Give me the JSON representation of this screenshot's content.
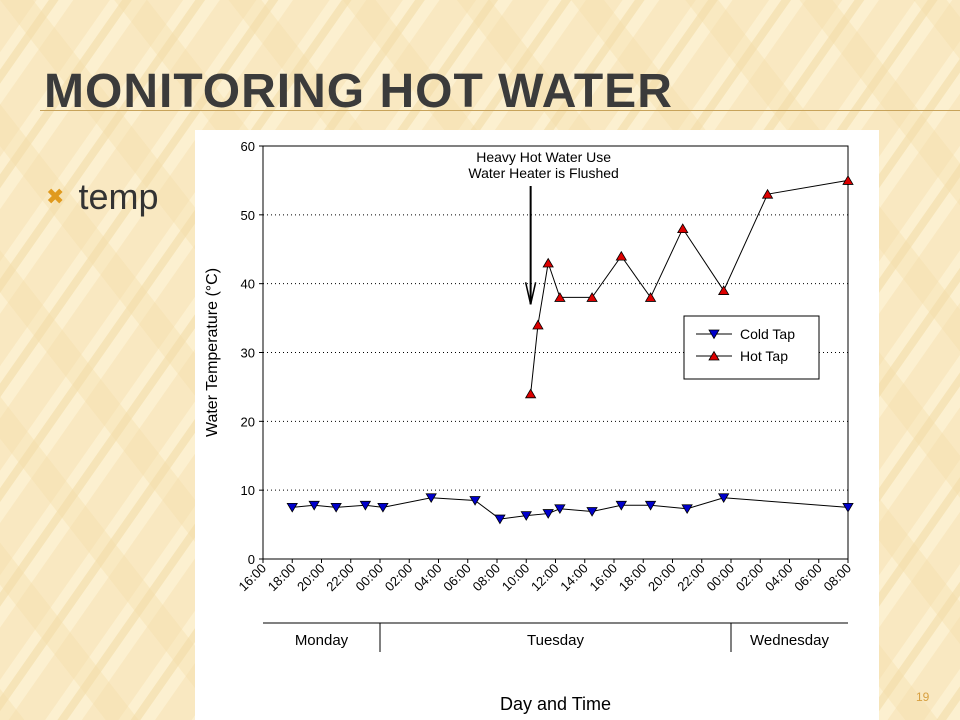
{
  "slide": {
    "title": "Monitoring Hot Water",
    "bullet": "temp",
    "page_number": "19",
    "accent_color": "#e09a1e"
  },
  "chart_data": {
    "type": "line",
    "xlabel": "Day and Time",
    "ylabel": "Water Temperature (°C)",
    "ylim": [
      0,
      60
    ],
    "yticks": [
      0,
      10,
      20,
      30,
      40,
      50,
      60
    ],
    "x_tick_labels": [
      "16:00",
      "18:00",
      "20:00",
      "22:00",
      "00:00",
      "02:00",
      "04:00",
      "06:00",
      "08:00",
      "10:00",
      "12:00",
      "14:00",
      "16:00",
      "18:00",
      "20:00",
      "22:00",
      "00:00",
      "02:00",
      "04:00",
      "06:00",
      "08:00"
    ],
    "x_range_hours": [
      0,
      40
    ],
    "days": [
      {
        "label": "Monday",
        "start_hours": 0,
        "end_hours": 8
      },
      {
        "label": "Tuesday",
        "start_hours": 8,
        "end_hours": 32
      },
      {
        "label": "Wednesday",
        "start_hours": 32,
        "end_hours": 40
      }
    ],
    "grid": "horizontal dotted",
    "legend_position": "right",
    "annotation": {
      "lines": [
        "Heavy Hot Water Use",
        "Water Heater is Flushed"
      ],
      "x_hours": 18.3,
      "arrow_tip": 37
    },
    "series": [
      {
        "name": "Cold Tap",
        "color": "#0000cc",
        "marker": "triangle-down",
        "x": [
          2,
          3.5,
          5,
          7,
          8.2,
          11.5,
          14.5,
          16.2,
          18,
          19.5,
          20.3,
          22.5,
          24.5,
          26.5,
          29,
          31.5,
          40
        ],
        "y": [
          7.5,
          7.8,
          7.5,
          7.8,
          7.5,
          8.9,
          8.5,
          5.8,
          6.3,
          6.6,
          7.3,
          6.9,
          7.8,
          7.8,
          7.3,
          8.9,
          7.5
        ]
      },
      {
        "name": "Hot Tap",
        "color": "#dd0000",
        "marker": "triangle-up",
        "x": [
          18.3,
          18.8,
          19.5,
          20.3,
          22.5,
          24.5,
          26.5,
          28.7,
          31.5,
          34.5,
          40
        ],
        "y": [
          24,
          34,
          43,
          38,
          38,
          44,
          38,
          48,
          39,
          53,
          55
        ]
      }
    ]
  }
}
